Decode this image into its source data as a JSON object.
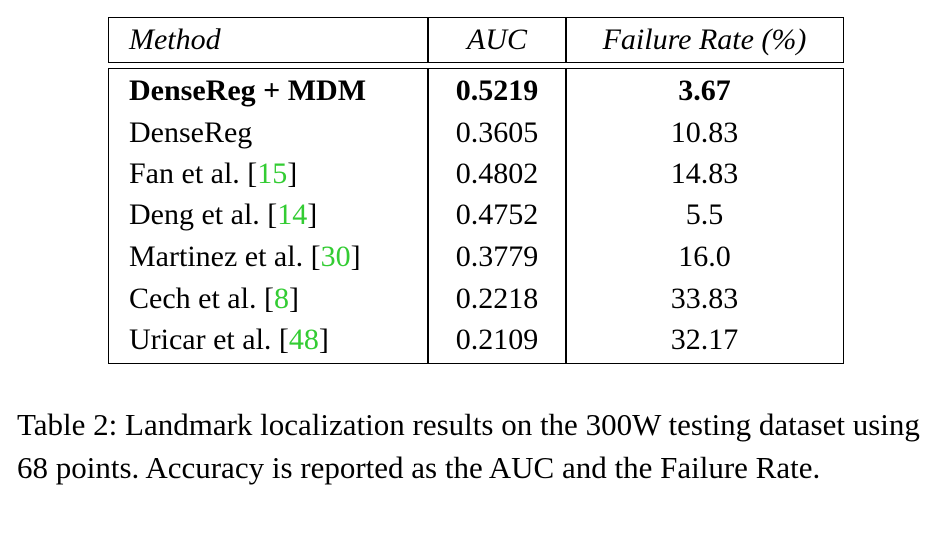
{
  "table": {
    "headers": {
      "method": "Method",
      "auc": "AUC",
      "failure_rate": "Failure Rate (%)"
    },
    "rows": [
      {
        "method": "DenseReg + MDM",
        "cite": "",
        "auc": "0.5219",
        "failure_rate": "3.67",
        "bold": true
      },
      {
        "method": "DenseReg",
        "cite": "",
        "auc": "0.3605",
        "failure_rate": "10.83",
        "bold": false
      },
      {
        "method": "Fan et al. [",
        "cite": "15",
        "auc": "0.4802",
        "failure_rate": "14.83",
        "bold": false
      },
      {
        "method": "Deng et al. [",
        "cite": "14",
        "auc": "0.4752",
        "failure_rate": "5.5",
        "bold": false
      },
      {
        "method": "Martinez et al. [",
        "cite": "30",
        "auc": "0.3779",
        "failure_rate": "16.0",
        "bold": false
      },
      {
        "method": "Cech et al. [",
        "cite": "8",
        "auc": "0.2218",
        "failure_rate": "33.83",
        "bold": false
      },
      {
        "method": "Uricar et al. [",
        "cite": "48",
        "auc": "0.2109",
        "failure_rate": "32.17",
        "bold": false
      }
    ],
    "cite_close": "]",
    "cite_color": "#33cc33"
  },
  "caption": {
    "text": "Table 2: Landmark localization results on the 300W testing dataset using 68 points.  Accuracy is reported as the AUC and the Failure Rate."
  }
}
